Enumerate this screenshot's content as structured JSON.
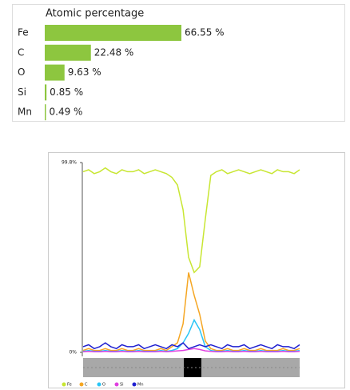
{
  "chart_data": [
    {
      "type": "hbar",
      "title": "Atomic percentage",
      "categories": [
        "Fe",
        "C",
        "O",
        "Si",
        "Mn"
      ],
      "values": [
        66.55,
        22.48,
        9.63,
        0.85,
        0.49
      ],
      "value_labels": [
        "66.55 %",
        "22.48 %",
        "9.63 %",
        "0.85 %",
        "0.49 %"
      ],
      "color": "#8dc63f"
    },
    {
      "type": "line",
      "x": [
        0,
        1,
        2,
        3,
        4,
        5,
        6,
        7,
        8,
        9,
        10,
        11,
        12,
        13,
        14,
        15,
        16,
        17,
        18,
        19,
        20,
        21,
        22,
        23,
        24,
        25,
        26,
        27,
        28,
        29,
        30,
        31,
        32,
        33,
        34,
        35,
        36,
        37,
        38,
        39
      ],
      "ylim": [
        0,
        99.8
      ],
      "yticks": [
        {
          "value": 0,
          "label": "0%"
        },
        {
          "value": 99.8,
          "label": "99.8%"
        }
      ],
      "series": [
        {
          "name": "Fe",
          "color": "#c8e632",
          "values": [
            95,
            96,
            94,
            95,
            97,
            95,
            94,
            96,
            95,
            95,
            96,
            94,
            95,
            96,
            95,
            94,
            92,
            88,
            75,
            50,
            42,
            45,
            70,
            93,
            95,
            96,
            94,
            95,
            96,
            95,
            94,
            95,
            96,
            95,
            94,
            96,
            95,
            95,
            94,
            96
          ]
        },
        {
          "name": "C",
          "color": "#f5a623",
          "values": [
            1,
            2,
            1,
            1,
            2,
            1,
            1,
            2,
            1,
            1,
            2,
            1,
            1,
            1,
            2,
            1,
            3,
            5,
            15,
            42,
            30,
            20,
            6,
            2,
            1,
            1,
            2,
            1,
            1,
            2,
            1,
            1,
            2,
            1,
            1,
            1,
            2,
            1,
            1,
            2
          ]
        },
        {
          "name": "O",
          "color": "#29c5f6",
          "values": [
            0.5,
            1,
            0.5,
            0.5,
            1,
            0.5,
            0.5,
            1,
            0.5,
            0.5,
            1,
            0.5,
            0.5,
            0.5,
            1,
            0.5,
            1,
            2,
            5,
            10,
            17,
            12,
            3,
            1,
            0.5,
            0.5,
            1,
            0.5,
            0.5,
            1,
            0.5,
            0.5,
            1,
            0.5,
            0.5,
            0.5,
            1,
            0.5,
            0.5,
            1
          ]
        },
        {
          "name": "Si",
          "color": "#e040e0",
          "values": [
            0.3,
            0.5,
            0.3,
            0.3,
            0.5,
            0.3,
            0.3,
            0.5,
            0.3,
            0.3,
            0.5,
            0.3,
            0.3,
            0.3,
            0.5,
            0.3,
            0.5,
            0.8,
            1,
            1.5,
            2,
            1.5,
            0.8,
            0.5,
            0.3,
            0.3,
            0.5,
            0.3,
            0.3,
            0.5,
            0.3,
            0.3,
            0.5,
            0.3,
            0.3,
            0.3,
            0.5,
            0.3,
            0.3,
            0.5
          ]
        },
        {
          "name": "Mn",
          "color": "#2020d0",
          "values": [
            3,
            4,
            2,
            3,
            5,
            3,
            2,
            4,
            3,
            3,
            4,
            2,
            3,
            4,
            3,
            2,
            4,
            3,
            5,
            2,
            3,
            4,
            3,
            4,
            3,
            2,
            4,
            3,
            3,
            4,
            2,
            3,
            4,
            3,
            2,
            4,
            3,
            3,
            2,
            4
          ]
        }
      ]
    }
  ]
}
